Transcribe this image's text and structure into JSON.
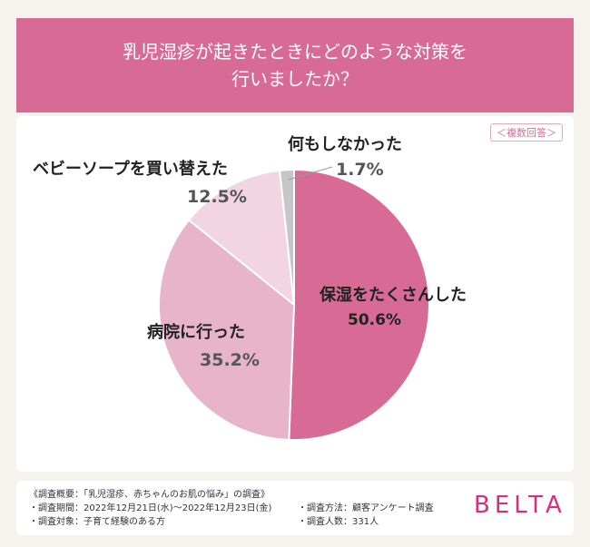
{
  "title": {
    "line1": "乳児湿疹が起きたときにどのような対策を",
    "line2": "行いましたか？"
  },
  "badge": "＜複数回答＞",
  "chart_data": {
    "type": "pie",
    "slices": [
      {
        "label": "保湿をたくさんした",
        "value": 50.6,
        "display": "50.6%",
        "color": "#d76b96"
      },
      {
        "label": "病院に行った",
        "value": 35.2,
        "display": "35.2%",
        "color": "#e8b4c9"
      },
      {
        "label": "ベビーソープを買い替えた",
        "value": 12.5,
        "display": "12.5%",
        "color": "#f2d5e1"
      },
      {
        "label": "何もしなかった",
        "value": 1.7,
        "display": "1.7%",
        "color": "#c6c6c6"
      }
    ]
  },
  "footer": {
    "overview": "《調査概要：「乳児湿疹、赤ちゃんのお肌の悩み」の調査》",
    "period": "・調査期間：2022年12月21日(水)〜2022年12月23日(金)",
    "target": "・調査対象：子育て経験のある方",
    "method": "・調査方法：顧客アンケート調査",
    "count": "・調査人数：331人"
  },
  "brand": "BELTA"
}
